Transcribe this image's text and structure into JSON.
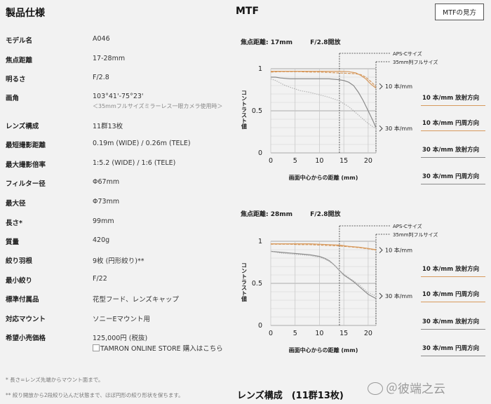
{
  "spec": {
    "title": "製品仕様",
    "rows": [
      {
        "label": "モデル名",
        "value": "A046"
      },
      {
        "label": "焦点距離",
        "value": "17-28mm"
      },
      {
        "label": "明るさ",
        "value": "F/2.8"
      },
      {
        "label": "画角",
        "value": "103°41'-75°23'",
        "sub": "＜35mmフルサイズミラーレス一眼カメラ使用時＞"
      },
      {
        "label": "レンズ構成",
        "value": "11群13枚"
      },
      {
        "label": "最短撮影距離",
        "value": "0.19m (WIDE) / 0.26m (TELE)"
      },
      {
        "label": "最大撮影倍率",
        "value": "1:5.2 (WIDE) / 1:6 (TELE)"
      },
      {
        "label": "フィルター径",
        "value": "Φ67mm"
      },
      {
        "label": "最大径",
        "value": "Φ73mm"
      },
      {
        "label": "長さ*",
        "value": "99mm"
      },
      {
        "label": "質量",
        "value": "420g"
      },
      {
        "label": "絞り羽根",
        "value": "9枚 (円形絞り)**"
      },
      {
        "label": "最小絞り",
        "value": "F/22"
      },
      {
        "label": "標準付属品",
        "value": "花型フード、レンズキャップ"
      },
      {
        "label": "対応マウント",
        "value": "ソニーEマウント用"
      },
      {
        "label": "希望小売価格",
        "value": "125,000円 (税抜)"
      }
    ],
    "store_link": {
      "image_alt": "TAMRON ONLINE STORE",
      "text": "購入はこちら"
    },
    "footnotes": [
      "* 長さ=レンズ先端からマウント面まで。",
      "** 絞り開放から2段絞り込んだ状態まで、ほぼ円形の絞り形状を保ちます。"
    ]
  },
  "mtf": {
    "title": "MTF",
    "howto_button": "MTFの見方",
    "legend": [
      "10 本/mm 放射方向",
      "10 本/mm 円周方向",
      "30 本/mm 放射方向",
      "30 本/mm 円周方向"
    ],
    "section_title": "レンズ構成　(11群13枚)"
  },
  "watermark": "＠彼端之云",
  "colors": {
    "orange": "#d79a5e",
    "gray": "#8a8a8a",
    "lightgray": "#b5b5b5"
  },
  "chart_data": [
    {
      "type": "line",
      "focal_label": "焦点距離: 17mm",
      "aperture_label": "F/2.8開放",
      "xlabel": "画面中心からの距離 (mm)",
      "ylabel": "コントラスト値",
      "x_ticks": [
        "0",
        "5",
        "10",
        "15",
        "20"
      ],
      "y_ticks": [
        "1",
        "0.5",
        "0"
      ],
      "xlim": [
        0,
        21.6
      ],
      "ylim": [
        0,
        1
      ],
      "guides": [
        {
          "x": 14.1,
          "label": "APS-Cサイズ"
        },
        {
          "x": 21.6,
          "label": "35mm判フルサイズ"
        }
      ],
      "side_labels": [
        "10 本/mm",
        "30 本/mm"
      ],
      "series": [
        {
          "style": "orange-solid",
          "x": [
            0,
            2,
            4,
            6,
            8,
            10,
            12,
            14,
            16,
            17.5,
            18.5,
            19.5,
            20.5,
            21.6
          ],
          "y": [
            0.97,
            0.97,
            0.97,
            0.97,
            0.97,
            0.97,
            0.97,
            0.97,
            0.965,
            0.95,
            0.92,
            0.88,
            0.82,
            0.77
          ]
        },
        {
          "style": "orange-dashed",
          "x": [
            0,
            2,
            4,
            6,
            8,
            10,
            12,
            14,
            16,
            17.5,
            18.5,
            19.5,
            20.5,
            21.6
          ],
          "y": [
            0.96,
            0.965,
            0.965,
            0.965,
            0.96,
            0.96,
            0.955,
            0.95,
            0.945,
            0.94,
            0.93,
            0.9,
            0.85,
            0.79
          ]
        },
        {
          "style": "gray-solid",
          "x": [
            0,
            1,
            2,
            4,
            6,
            8,
            10,
            12,
            14,
            15,
            16,
            17,
            18,
            19,
            20,
            21,
            21.6
          ],
          "y": [
            0.9,
            0.9,
            0.89,
            0.88,
            0.88,
            0.88,
            0.88,
            0.88,
            0.87,
            0.86,
            0.84,
            0.8,
            0.72,
            0.62,
            0.5,
            0.38,
            0.3
          ]
        },
        {
          "style": "gray-dashed",
          "x": [
            0,
            1,
            2,
            3,
            4,
            6,
            8,
            10,
            12,
            14,
            16,
            17,
            18,
            19,
            20,
            21,
            21.6
          ],
          "y": [
            0.88,
            0.86,
            0.83,
            0.8,
            0.78,
            0.74,
            0.72,
            0.69,
            0.66,
            0.62,
            0.55,
            0.5,
            0.45,
            0.4,
            0.35,
            0.31,
            0.29
          ]
        }
      ]
    },
    {
      "type": "line",
      "focal_label": "焦点距離: 28mm",
      "aperture_label": "F/2.8開放",
      "xlabel": "画面中心からの距離 (mm)",
      "ylabel": "コントラスト値",
      "x_ticks": [
        "0",
        "5",
        "10",
        "15",
        "20"
      ],
      "y_ticks": [
        "1",
        "0.5",
        "0"
      ],
      "xlim": [
        0,
        21.6
      ],
      "ylim": [
        0,
        1
      ],
      "guides": [
        {
          "x": 14.1,
          "label": "APS-Cサイズ"
        },
        {
          "x": 21.6,
          "label": "35mm判フルサイズ"
        }
      ],
      "side_labels": [
        "10 本/mm",
        "30 本/mm"
      ],
      "series": [
        {
          "style": "orange-solid",
          "x": [
            0,
            2,
            4,
            6,
            8,
            10,
            12,
            14,
            16,
            18,
            20,
            21.6
          ],
          "y": [
            0.97,
            0.97,
            0.97,
            0.97,
            0.97,
            0.965,
            0.96,
            0.955,
            0.94,
            0.93,
            0.915,
            0.9
          ]
        },
        {
          "style": "orange-dashed",
          "x": [
            0,
            2,
            4,
            6,
            8,
            10,
            12,
            14,
            16,
            18,
            20,
            21.6
          ],
          "y": [
            0.965,
            0.965,
            0.965,
            0.96,
            0.96,
            0.955,
            0.95,
            0.945,
            0.935,
            0.925,
            0.91,
            0.895
          ]
        },
        {
          "style": "gray-solid",
          "x": [
            0,
            2,
            4,
            6,
            8,
            10,
            11,
            12,
            13,
            14,
            15,
            16,
            17,
            18,
            19,
            20,
            21.6
          ],
          "y": [
            0.88,
            0.87,
            0.86,
            0.85,
            0.84,
            0.82,
            0.8,
            0.77,
            0.72,
            0.66,
            0.6,
            0.56,
            0.52,
            0.47,
            0.42,
            0.37,
            0.32
          ]
        },
        {
          "style": "gray-dashed",
          "x": [
            0,
            2,
            4,
            6,
            8,
            10,
            11,
            12,
            13,
            14,
            15,
            16,
            17,
            18,
            19,
            20,
            21.6
          ],
          "y": [
            0.88,
            0.86,
            0.85,
            0.84,
            0.83,
            0.81,
            0.79,
            0.76,
            0.72,
            0.66,
            0.61,
            0.57,
            0.53,
            0.49,
            0.44,
            0.39,
            0.35
          ]
        }
      ]
    }
  ]
}
